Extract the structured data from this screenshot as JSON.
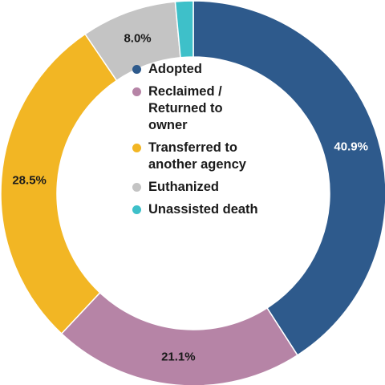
{
  "chart_data": {
    "type": "pie",
    "donut": true,
    "categories": [
      "Adopted",
      "Reclaimed / Returned to owner",
      "Transferred to another agency",
      "Euthanized",
      "Unassisted death"
    ],
    "values": [
      40.9,
      21.1,
      28.5,
      8.0,
      1.5
    ],
    "data_labels": [
      "40.9%",
      "21.1%",
      "28.5%",
      "8.0%",
      ""
    ],
    "colors": [
      "#2e5a8c",
      "#b684a6",
      "#f2b624",
      "#c4c4c4",
      "#3ec0c9"
    ],
    "label_colors": [
      "#ffffff",
      "#1a1a1a",
      "#1a1a1a",
      "#1a1a1a",
      "#1a1a1a"
    ],
    "legend_placement": "center",
    "start_angle_deg": 0,
    "direction": "clockwise"
  },
  "legend": [
    {
      "label": "Adopted",
      "color": "#2e5a8c"
    },
    {
      "label": "Reclaimed / Returned to owner",
      "color": "#b684a6"
    },
    {
      "label": "Transferred to another agency",
      "color": "#f2b624"
    },
    {
      "label": "Euthanized",
      "color": "#c4c4c4"
    },
    {
      "label": "Unassisted death",
      "color": "#3ec0c9"
    }
  ]
}
